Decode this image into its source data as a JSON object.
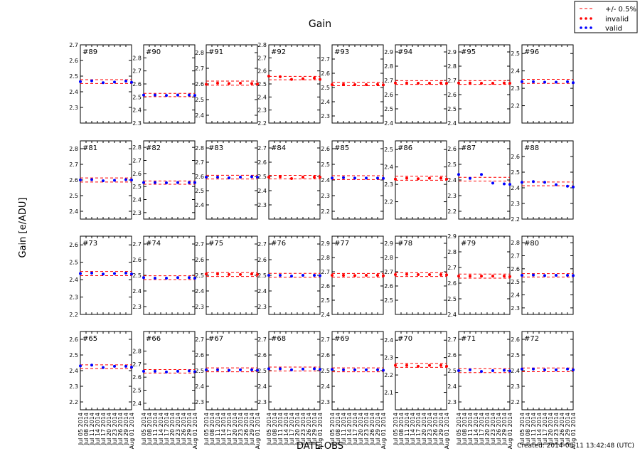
{
  "figure": {
    "title": "Gain",
    "ylabel": "Gain [e/ADU]",
    "xlabel": "DATE-OBS",
    "footer": "Created: 2014-08-11 13:42:48 (UTC)"
  },
  "legend": {
    "placement": "top-right",
    "entries": [
      {
        "label": "+/- 0.5%",
        "style": "dashed-line",
        "color": "#ff0000"
      },
      {
        "label": "invalid",
        "style": "dots",
        "color": "#ff0000"
      },
      {
        "label": "valid",
        "style": "dots",
        "color": "#0000ff"
      }
    ]
  },
  "colors": {
    "valid": "#0000ff",
    "invalid": "#ff0000",
    "band": "#ff0000"
  },
  "chart_data": {
    "type": "scatter",
    "grid": false,
    "x_dates": [
      "2014-07-05",
      "2014-07-11",
      "2014-07-17",
      "2014-07-23",
      "2014-07-29",
      "2014-08-01"
    ],
    "x_tick_labels": [
      "Jul 05 2014",
      "Jul 08 2014",
      "Jul 11 2014",
      "Jul 14 2014",
      "Jul 17 2014",
      "Jul 20 2014",
      "Jul 23 2014",
      "Jul 26 2014",
      "Jul 29 2014",
      "Aug 01 2014"
    ],
    "xlim": [
      "2014-07-05",
      "2014-08-01"
    ],
    "band_percent": 0.5,
    "panels": [
      {
        "label": "#89",
        "ylim": [
          2.2,
          2.7
        ],
        "yticks": [
          2.3,
          2.4,
          2.5,
          2.6,
          2.7
        ],
        "nominal": 2.465,
        "valid": true,
        "values": [
          2.465,
          2.47,
          2.458,
          2.462,
          2.468,
          2.46
        ]
      },
      {
        "label": "#90",
        "ylim": [
          2.3,
          2.9
        ],
        "yticks": [
          2.3,
          2.4,
          2.5,
          2.6,
          2.7,
          2.8
        ],
        "nominal": 2.515,
        "valid": true,
        "values": [
          2.515,
          2.515,
          2.512,
          2.515,
          2.515,
          2.512
        ]
      },
      {
        "label": "#91",
        "ylim": [
          2.35,
          2.85
        ],
        "yticks": [
          2.4,
          2.5,
          2.6,
          2.7,
          2.8
        ],
        "nominal": 2.605,
        "valid": false,
        "values": [
          2.598,
          2.605,
          2.603,
          2.605,
          2.603,
          2.6
        ]
      },
      {
        "label": "#92",
        "ylim": [
          2.2,
          2.8
        ],
        "yticks": [
          2.2,
          2.3,
          2.4,
          2.5,
          2.6,
          2.7,
          2.8
        ],
        "nominal": 2.545,
        "valid": false,
        "values": [
          2.56,
          2.555,
          2.535,
          2.54,
          2.545,
          2.535
        ]
      },
      {
        "label": "#93",
        "ylim": [
          2.25,
          2.8
        ],
        "yticks": [
          2.3,
          2.4,
          2.5,
          2.6,
          2.7
        ],
        "nominal": 2.525,
        "valid": false,
        "values": [
          2.52,
          2.522,
          2.52,
          2.52,
          2.522,
          2.518
        ]
      },
      {
        "label": "#94",
        "ylim": [
          2.4,
          2.95
        ],
        "yticks": [
          2.4,
          2.5,
          2.6,
          2.7,
          2.8,
          2.9
        ],
        "nominal": 2.685,
        "valid": false,
        "values": [
          2.682,
          2.682,
          2.68,
          2.68,
          2.682,
          2.68
        ]
      },
      {
        "label": "#95",
        "ylim": [
          2.4,
          2.95
        ],
        "yticks": [
          2.4,
          2.5,
          2.6,
          2.7,
          2.8,
          2.9
        ],
        "nominal": 2.685,
        "valid": false,
        "values": [
          2.682,
          2.682,
          2.68,
          2.68,
          2.682,
          2.68
        ]
      },
      {
        "label": "#96",
        "ylim": [
          2.1,
          2.55
        ],
        "yticks": [
          2.2,
          2.3,
          2.4,
          2.5
        ],
        "nominal": 2.34,
        "valid": true,
        "values": [
          2.338,
          2.338,
          2.335,
          2.335,
          2.338,
          2.332
        ]
      },
      {
        "label": "#81",
        "ylim": [
          2.35,
          2.85
        ],
        "yticks": [
          2.4,
          2.5,
          2.6,
          2.7,
          2.8
        ],
        "nominal": 2.6,
        "valid": true,
        "values": [
          2.6,
          2.602,
          2.595,
          2.598,
          2.602,
          2.6
        ]
      },
      {
        "label": "#82",
        "ylim": [
          2.25,
          2.85
        ],
        "yticks": [
          2.3,
          2.4,
          2.5,
          2.6,
          2.7,
          2.8
        ],
        "nominal": 2.53,
        "valid": true,
        "values": [
          2.53,
          2.53,
          2.528,
          2.53,
          2.53,
          2.53
        ]
      },
      {
        "label": "#83",
        "ylim": [
          2.3,
          2.85
        ],
        "yticks": [
          2.4,
          2.5,
          2.6,
          2.7,
          2.8
        ],
        "nominal": 2.595,
        "valid": true,
        "values": [
          2.595,
          2.595,
          2.59,
          2.595,
          2.598,
          2.595
        ]
      },
      {
        "label": "#84",
        "ylim": [
          2.2,
          2.75
        ],
        "yticks": [
          2.3,
          2.4,
          2.5,
          2.6,
          2.7
        ],
        "nominal": 2.495,
        "valid": false,
        "values": [
          2.495,
          2.498,
          2.485,
          2.495,
          2.495,
          2.495
        ]
      },
      {
        "label": "#85",
        "ylim": [
          2.15,
          2.65
        ],
        "yticks": [
          2.2,
          2.3,
          2.4,
          2.5,
          2.6
        ],
        "nominal": 2.415,
        "valid": true,
        "values": [
          2.412,
          2.415,
          2.412,
          2.412,
          2.412,
          2.41
        ]
      },
      {
        "label": "#86",
        "ylim": [
          2.1,
          2.55
        ],
        "yticks": [
          2.2,
          2.3,
          2.4,
          2.5
        ],
        "nominal": 2.335,
        "valid": false,
        "values": [
          2.33,
          2.335,
          2.332,
          2.335,
          2.335,
          2.33
        ]
      },
      {
        "label": "#87",
        "ylim": [
          2.15,
          2.65
        ],
        "yticks": [
          2.2,
          2.3,
          2.4,
          2.5,
          2.6
        ],
        "nominal": 2.405,
        "valid": true,
        "values": [
          2.435,
          2.41,
          2.435,
          2.38,
          2.375,
          2.372
        ]
      },
      {
        "label": "#88",
        "ylim": [
          2.2,
          2.7
        ],
        "yticks": [
          2.2,
          2.3,
          2.4,
          2.5,
          2.6
        ],
        "nominal": 2.425,
        "valid": true,
        "values": [
          2.435,
          2.44,
          2.435,
          2.42,
          2.41,
          2.405
        ]
      },
      {
        "label": "#73",
        "ylim": [
          2.2,
          2.65
        ],
        "yticks": [
          2.2,
          2.3,
          2.4,
          2.5,
          2.6
        ],
        "nominal": 2.435,
        "valid": true,
        "values": [
          2.435,
          2.438,
          2.432,
          2.435,
          2.438,
          2.432
        ]
      },
      {
        "label": "#74",
        "ylim": [
          2.25,
          2.75
        ],
        "yticks": [
          2.3,
          2.4,
          2.5,
          2.6,
          2.7
        ],
        "nominal": 2.485,
        "valid": true,
        "values": [
          2.485,
          2.482,
          2.482,
          2.485,
          2.485,
          2.482
        ]
      },
      {
        "label": "#75",
        "ylim": [
          2.25,
          2.75
        ],
        "yticks": [
          2.3,
          2.4,
          2.5,
          2.6,
          2.7
        ],
        "nominal": 2.505,
        "valid": false,
        "values": [
          2.508,
          2.508,
          2.505,
          2.505,
          2.508,
          2.505
        ]
      },
      {
        "label": "#76",
        "ylim": [
          2.25,
          2.75
        ],
        "yticks": [
          2.3,
          2.4,
          2.5,
          2.6,
          2.7
        ],
        "nominal": 2.5,
        "valid": true,
        "values": [
          2.5,
          2.5,
          2.495,
          2.5,
          2.5,
          2.498
        ]
      },
      {
        "label": "#77",
        "ylim": [
          2.4,
          2.95
        ],
        "yticks": [
          2.4,
          2.5,
          2.6,
          2.7,
          2.8,
          2.9
        ],
        "nominal": 2.675,
        "valid": false,
        "values": [
          2.675,
          2.675,
          2.673,
          2.675,
          2.675,
          2.672
        ]
      },
      {
        "label": "#78",
        "ylim": [
          2.4,
          2.95
        ],
        "yticks": [
          2.5,
          2.6,
          2.7,
          2.8,
          2.9
        ],
        "nominal": 2.68,
        "valid": false,
        "values": [
          2.68,
          2.682,
          2.68,
          2.68,
          2.68,
          2.678
        ]
      },
      {
        "label": "#79",
        "ylim": [
          2.4,
          2.9
        ],
        "yticks": [
          2.4,
          2.5,
          2.6,
          2.7,
          2.8,
          2.9
        ],
        "nominal": 2.645,
        "valid": false,
        "values": [
          2.645,
          2.645,
          2.645,
          2.645,
          2.645,
          2.642
        ]
      },
      {
        "label": "#80",
        "ylim": [
          2.25,
          2.85
        ],
        "yticks": [
          2.3,
          2.4,
          2.5,
          2.6,
          2.7,
          2.8
        ],
        "nominal": 2.55,
        "valid": true,
        "values": [
          2.55,
          2.552,
          2.548,
          2.55,
          2.55,
          2.548
        ]
      },
      {
        "label": "#65",
        "ylim": [
          2.15,
          2.65
        ],
        "yticks": [
          2.2,
          2.3,
          2.4,
          2.5,
          2.6
        ],
        "nominal": 2.425,
        "valid": true,
        "values": [
          2.43,
          2.435,
          2.42,
          2.428,
          2.428,
          2.422
        ]
      },
      {
        "label": "#66",
        "ylim": [
          2.35,
          2.95
        ],
        "yticks": [
          2.4,
          2.5,
          2.6,
          2.7,
          2.8
        ],
        "nominal": 2.645,
        "valid": true,
        "values": [
          2.645,
          2.645,
          2.64,
          2.645,
          2.648,
          2.642
        ]
      },
      {
        "label": "#67",
        "ylim": [
          2.25,
          2.75
        ],
        "yticks": [
          2.3,
          2.4,
          2.5,
          2.6,
          2.7
        ],
        "nominal": 2.505,
        "valid": true,
        "values": [
          2.505,
          2.505,
          2.502,
          2.505,
          2.505,
          2.502
        ]
      },
      {
        "label": "#68",
        "ylim": [
          2.25,
          2.75
        ],
        "yticks": [
          2.3,
          2.4,
          2.5,
          2.6,
          2.7
        ],
        "nominal": 2.51,
        "valid": true,
        "values": [
          2.512,
          2.512,
          2.505,
          2.51,
          2.512,
          2.508
        ]
      },
      {
        "label": "#69",
        "ylim": [
          2.25,
          2.75
        ],
        "yticks": [
          2.3,
          2.4,
          2.5,
          2.6,
          2.7
        ],
        "nominal": 2.505,
        "valid": true,
        "values": [
          2.508,
          2.505,
          2.505,
          2.505,
          2.505,
          2.502
        ]
      },
      {
        "label": "#70",
        "ylim": [
          2.0,
          2.45
        ],
        "yticks": [
          2.1,
          2.2,
          2.3,
          2.4
        ],
        "nominal": 2.255,
        "valid": false,
        "values": [
          2.255,
          2.255,
          2.25,
          2.255,
          2.255,
          2.25
        ]
      },
      {
        "label": "#71",
        "ylim": [
          2.25,
          2.75
        ],
        "yticks": [
          2.3,
          2.4,
          2.5,
          2.6,
          2.7
        ],
        "nominal": 2.5,
        "valid": true,
        "values": [
          2.5,
          2.505,
          2.495,
          2.5,
          2.502,
          2.498
        ]
      },
      {
        "label": "#72",
        "ylim": [
          2.15,
          2.65
        ],
        "yticks": [
          2.2,
          2.3,
          2.4,
          2.5,
          2.6
        ],
        "nominal": 2.405,
        "valid": true,
        "values": [
          2.41,
          2.41,
          2.405,
          2.405,
          2.41,
          2.405
        ]
      }
    ]
  }
}
